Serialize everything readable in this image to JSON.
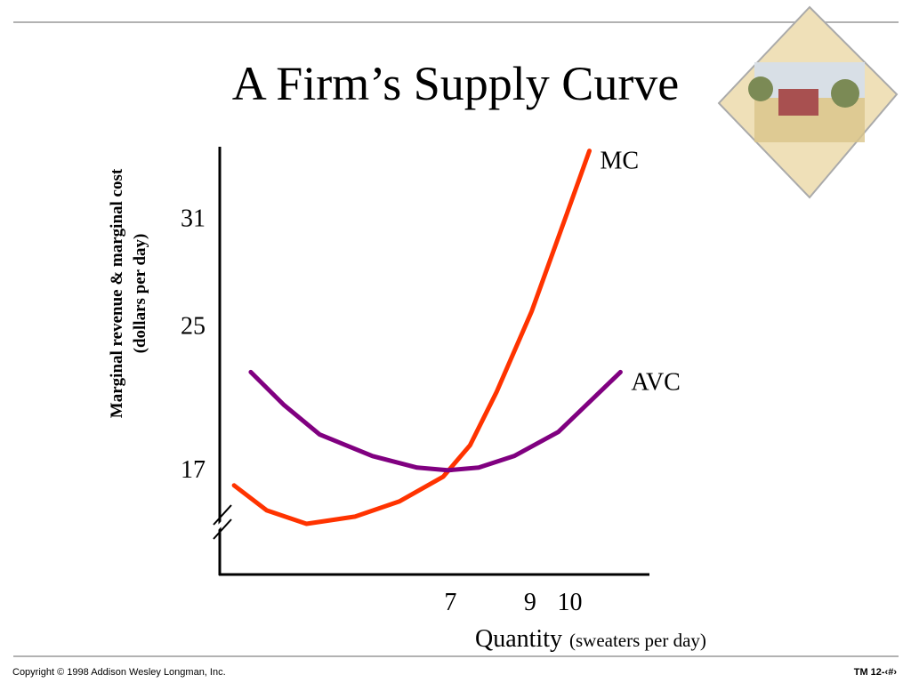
{
  "chart_data": {
    "type": "line",
    "title": "A Firm’s Supply Curve",
    "y_label": [
      "Marginal revenue & marginal cost",
      "(dollars per day)"
    ],
    "x_label": "Quantity",
    "x_label_note": "(sweaters per day)",
    "xlim": [
      1.2,
      12
    ],
    "xticks": [
      7,
      9,
      10
    ],
    "ylim": [
      11.3,
      35.1
    ],
    "yticks": [
      17,
      25,
      31
    ],
    "series": [
      {
        "name": "MC",
        "color": "#ff3300",
        "x": [
          1.56,
          2.38,
          3.38,
          4.6,
          5.71,
          6.82,
          7.49,
          8.16,
          9.04,
          9.93,
          10.49
        ],
        "values": [
          16.26,
          14.87,
          14.12,
          14.52,
          15.36,
          16.75,
          18.49,
          21.47,
          25.94,
          31.4,
          34.87
        ]
      },
      {
        "name": "AVC",
        "color": "#800080",
        "x": [
          1.98,
          2.82,
          3.71,
          5.04,
          6.16,
          6.93,
          7.71,
          8.6,
          9.71,
          11.27
        ],
        "values": [
          22.56,
          20.72,
          19.09,
          17.89,
          17.25,
          17.1,
          17.25,
          17.89,
          19.23,
          22.56
        ]
      }
    ]
  },
  "footer": {
    "copyright": "Copyright © 1998 Addison Wesley Longman, Inc.",
    "slide": "TM 12-‹#›"
  }
}
